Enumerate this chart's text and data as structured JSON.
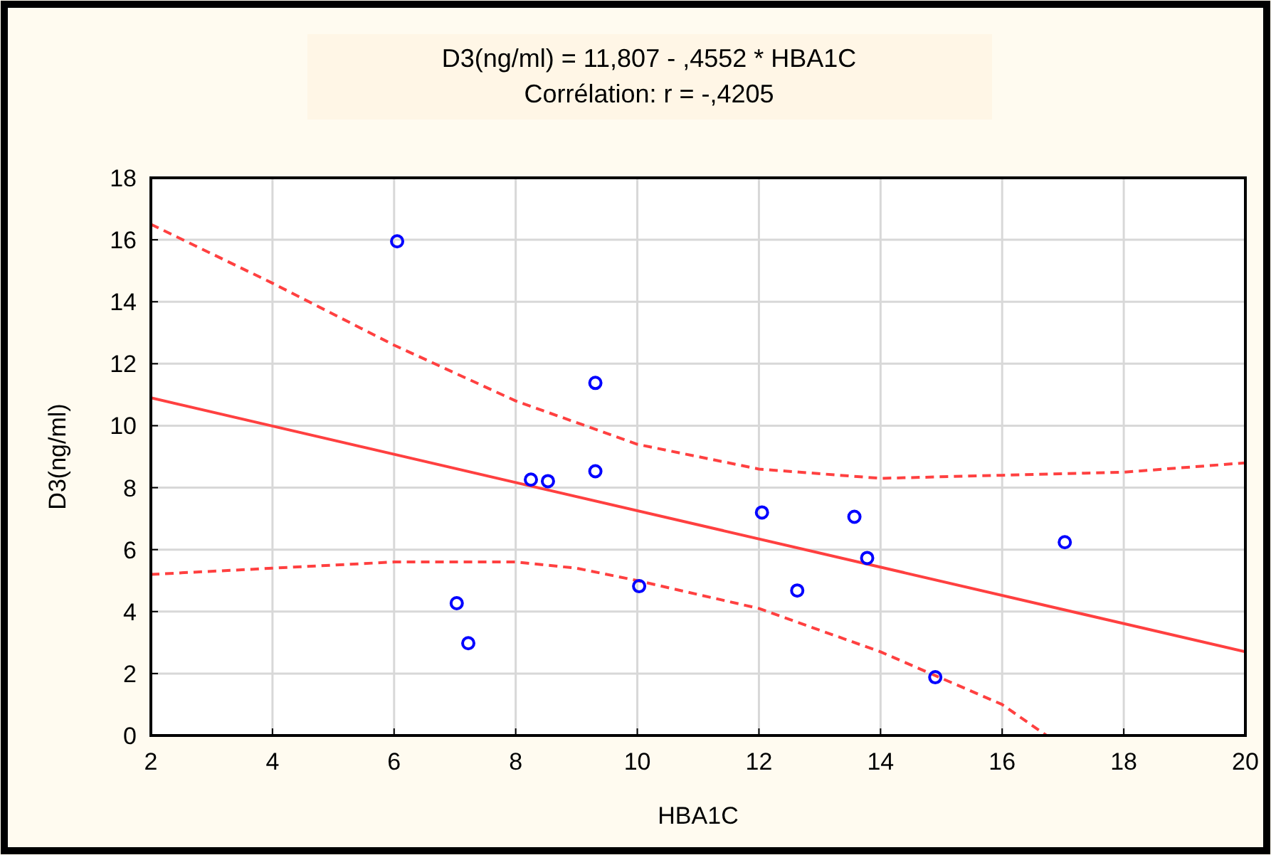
{
  "chart_data": {
    "type": "scatter",
    "title": "D3(ng/ml) = 11,807 - ,4552  * HBA1C",
    "subtitle": "Corrélation: r = -,4205",
    "xlabel": "HBA1C",
    "ylabel": "D3(ng/ml)",
    "xlim": [
      2,
      20
    ],
    "xticks": [
      2,
      4,
      6,
      8,
      10,
      12,
      14,
      16,
      18,
      20
    ],
    "ylim": [
      0,
      18
    ],
    "yticks": [
      0,
      2,
      4,
      6,
      8,
      10,
      12,
      14,
      16,
      18
    ],
    "grid": true,
    "series": [
      {
        "color": "#0000ff",
        "marker": "circle",
        "x": [
          6.05,
          7.03,
          7.22,
          8.25,
          8.53,
          9.31,
          9.31,
          10.03,
          12.05,
          12.63,
          13.57,
          13.78,
          14.9,
          17.03
        ],
        "values": [
          15.95,
          4.27,
          2.98,
          8.26,
          8.21,
          11.38,
          8.53,
          4.82,
          7.2,
          4.68,
          7.06,
          5.73,
          1.88,
          6.24
        ]
      },
      {
        "type": "line",
        "color": "#ff4040",
        "line_style": "solid",
        "x": [
          2,
          20
        ],
        "values": [
          10.9,
          2.7
        ]
      },
      {
        "type": "line",
        "color": "#ff4040",
        "line_style": "dashed",
        "x": [
          2,
          4,
          6,
          8,
          10,
          12,
          14,
          16,
          18,
          20
        ],
        "values": [
          16.5,
          14.6,
          12.6,
          10.8,
          9.4,
          8.6,
          8.3,
          8.4,
          8.5,
          8.8
        ]
      },
      {
        "type": "line",
        "color": "#ff4040",
        "line_style": "dashed",
        "x": [
          2,
          4,
          6,
          8,
          9,
          10,
          12,
          14,
          16,
          16.73
        ],
        "values": [
          5.2,
          5.4,
          5.6,
          5.6,
          5.4,
          5.0,
          4.1,
          2.7,
          1.0,
          0
        ]
      }
    ]
  }
}
